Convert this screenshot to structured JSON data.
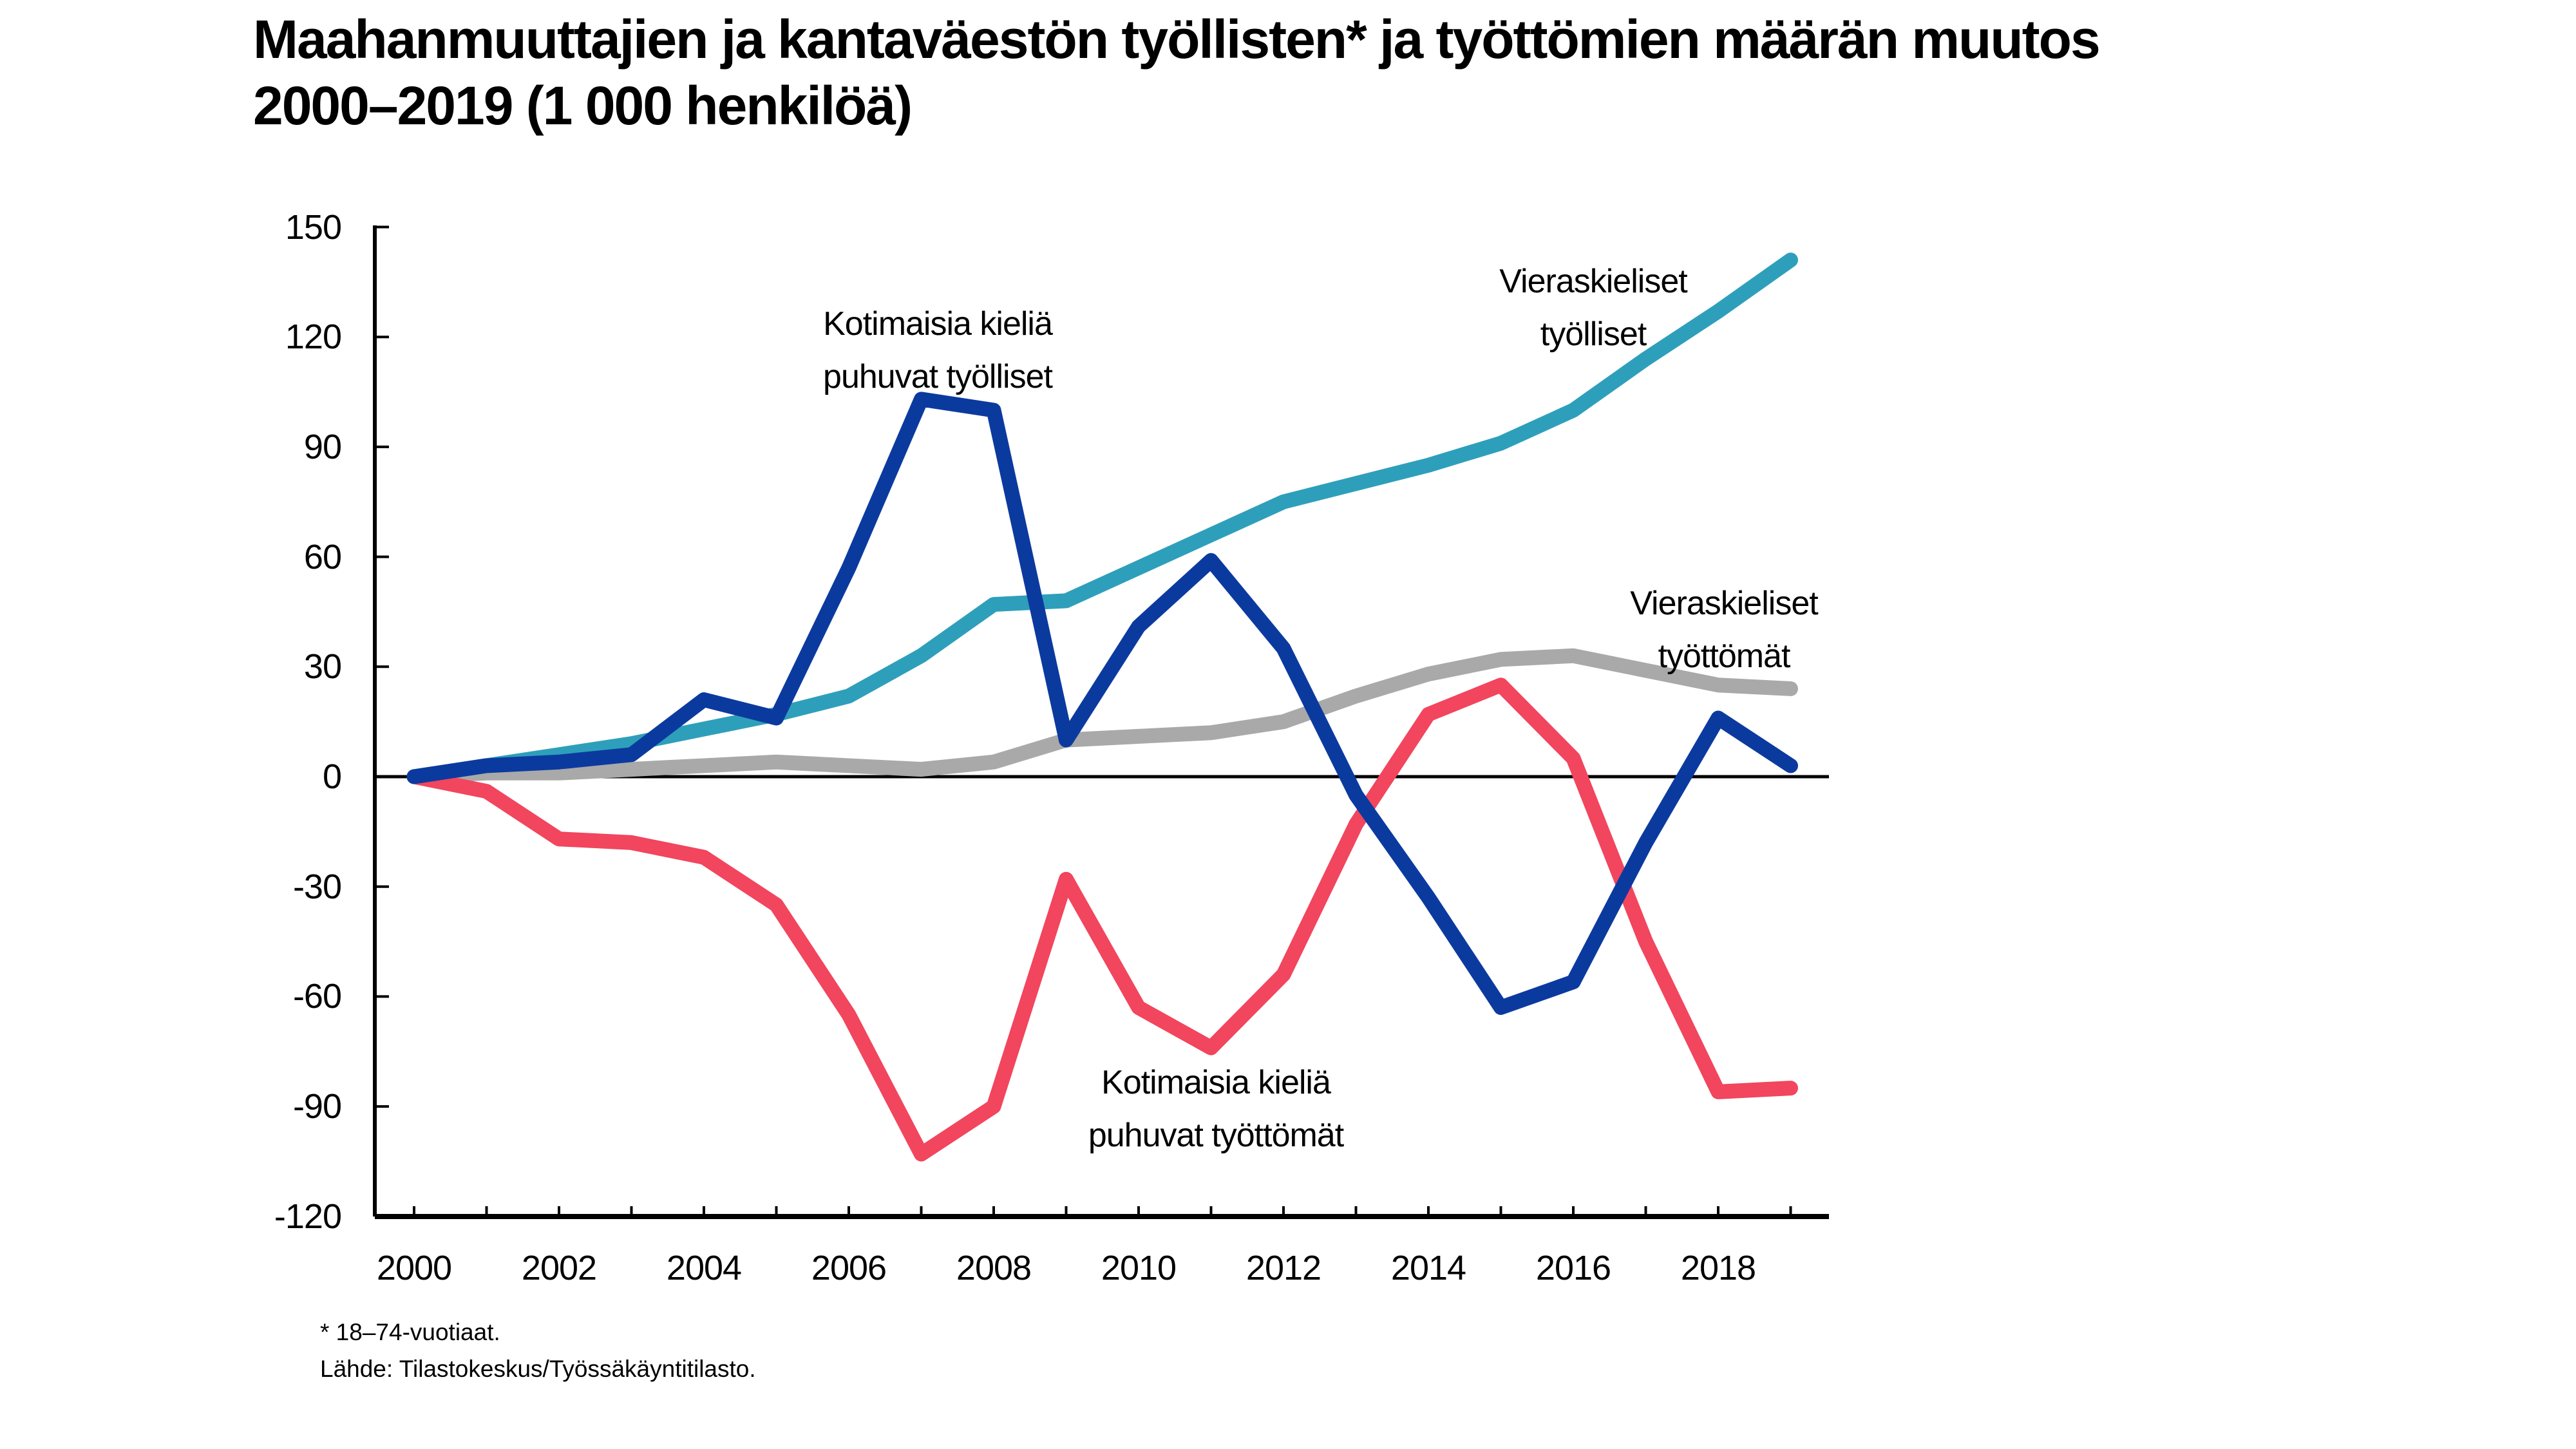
{
  "title": {
    "line1": "Maahanmuuttajien ja kantaväestön työllisten* ja työttömien määrän muutos",
    "line2": "2000–2019 (1 000 henkilöä)"
  },
  "annotations": [
    {
      "id": "kotimaiset-tyolliset",
      "line1": "Kotimaisia kieliä",
      "line2": "puhuvat työlliset"
    },
    {
      "id": "vieraskieliset-tyolliset",
      "line1": "Vieraskieliset",
      "line2": "työlliset"
    },
    {
      "id": "vieraskieliset-tyottomat",
      "line1": "Vieraskieliset",
      "line2": "työttömät"
    },
    {
      "id": "kotimaiset-tyottomat",
      "line1": "Kotimaisia kieliä",
      "line2": "puhuvat työttömät"
    }
  ],
  "footnotes": {
    "line1": "* 18–74-vuotiaat.",
    "line2": "Lähde: Tilastokeskus/Työssäkäyntitilasto."
  },
  "chart_data": {
    "type": "line",
    "title": "Maahanmuuttajien ja kantaväestön työllisten ja työttömien määrän muutos 2000–2019 (1 000 henkilöä)",
    "xlabel": "",
    "ylabel": "",
    "ylim": [
      -120,
      150
    ],
    "ytick_step": 30,
    "grid": "zero-baseline-only",
    "legend": "inline-annotations",
    "axis_color": "#000000",
    "line_width": 23,
    "x": [
      2000,
      2001,
      2002,
      2003,
      2004,
      2005,
      2006,
      2007,
      2008,
      2009,
      2010,
      2011,
      2012,
      2013,
      2014,
      2015,
      2016,
      2017,
      2018,
      2019
    ],
    "yticks": [
      150,
      120,
      90,
      60,
      30,
      0,
      -30,
      -60,
      -90,
      -120
    ],
    "xtick_labels": [
      2000,
      2002,
      2004,
      2006,
      2008,
      2010,
      2012,
      2014,
      2016,
      2018
    ],
    "series": [
      {
        "id": "vieraskieliset-tyottomat",
        "name": "Vieraskieliset työttömät",
        "color": "#a9a9a9",
        "values": [
          0,
          1,
          1,
          2,
          3,
          4,
          3,
          2,
          4,
          10,
          11,
          12,
          15,
          22,
          28,
          32,
          33,
          29,
          25,
          24
        ]
      },
      {
        "id": "vieraskieliset-tyolliset",
        "name": "Vieraskieliset työlliset",
        "color": "#2e9fbb",
        "values": [
          0,
          3,
          6,
          9,
          13,
          17,
          22,
          33,
          47,
          48,
          57,
          66,
          75,
          80,
          85,
          91,
          100,
          114,
          127,
          141
        ]
      },
      {
        "id": "kotimaiset-tyottomat",
        "name": "Kotimaisia kieliä puhuvat työttömät",
        "color": "#f2455e",
        "values": [
          0,
          -4,
          -17,
          -18,
          -22,
          -35,
          -65,
          -103,
          -90,
          -28,
          -63,
          -74,
          -54,
          -13,
          17,
          25,
          5,
          -45,
          -86,
          -85
        ]
      },
      {
        "id": "kotimaiset-tyolliset",
        "name": "Kotimaisia kieliä puhuvat työlliset",
        "color": "#0b3a9f",
        "values": [
          0,
          3,
          4,
          6,
          21,
          16,
          57,
          103,
          100,
          10,
          41,
          59,
          35,
          -5,
          -33,
          -63,
          -56,
          -18,
          16,
          3
        ]
      }
    ]
  }
}
